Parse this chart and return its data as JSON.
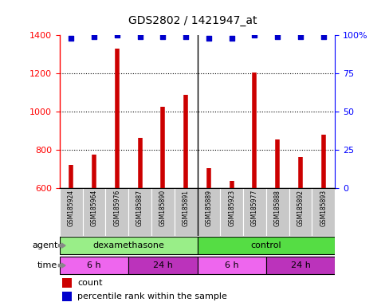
{
  "title": "GDS2802 / 1421947_at",
  "samples": [
    "GSM185924",
    "GSM185964",
    "GSM185976",
    "GSM185887",
    "GSM185890",
    "GSM185891",
    "GSM185889",
    "GSM185923",
    "GSM185977",
    "GSM185888",
    "GSM185892",
    "GSM185893"
  ],
  "counts": [
    720,
    775,
    1330,
    865,
    1025,
    1090,
    705,
    640,
    1205,
    855,
    765,
    880
  ],
  "percentiles": [
    98,
    99,
    100,
    99,
    99,
    99,
    98,
    98,
    100,
    99,
    99,
    99
  ],
  "ymin": 600,
  "ymax": 1400,
  "yticks": [
    600,
    800,
    1000,
    1200,
    1400
  ],
  "y2min": 0,
  "y2max": 100,
  "y2ticks": [
    0,
    25,
    50,
    75,
    100
  ],
  "bar_color": "#cc0000",
  "dot_color": "#0000cc",
  "agent_groups": [
    {
      "label": "dexamethasone",
      "start": 0,
      "end": 6,
      "color": "#99ee88"
    },
    {
      "label": "control",
      "start": 6,
      "end": 12,
      "color": "#55dd44"
    }
  ],
  "time_groups": [
    {
      "label": "6 h",
      "start": 0,
      "end": 3,
      "color": "#ee66ee"
    },
    {
      "label": "24 h",
      "start": 3,
      "end": 6,
      "color": "#bb33bb"
    },
    {
      "label": "6 h",
      "start": 6,
      "end": 9,
      "color": "#ee66ee"
    },
    {
      "label": "24 h",
      "start": 9,
      "end": 12,
      "color": "#bb33bb"
    }
  ],
  "agent_label": "agent",
  "time_label": "time",
  "legend_count_label": "count",
  "legend_pct_label": "percentile rank within the sample",
  "bg_color": "#ffffff",
  "label_area_color": "#c8c8c8",
  "sep_color": "#000000",
  "grid_color": "#000000"
}
